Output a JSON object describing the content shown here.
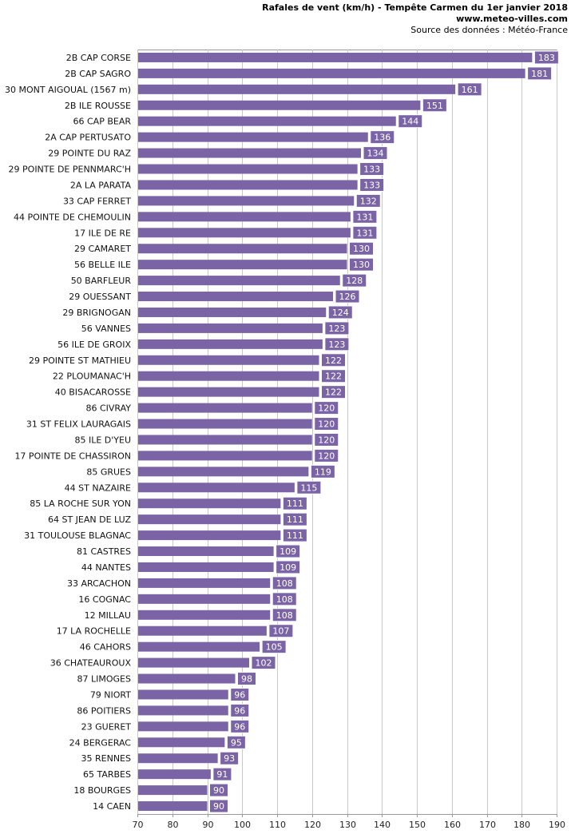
{
  "header": {
    "title": "Rafales de vent (km/h) - Tempête Carmen du 1er janvier 2018",
    "site": "www.meteo-villes.com",
    "source": "Source des données : Météo-France"
  },
  "colors": {
    "bar": "#7b64a6",
    "label_bg": "#7b64a6",
    "label_text": "#ffffff",
    "grid": "#c8c8c8"
  },
  "chart_data": {
    "type": "bar",
    "orientation": "horizontal",
    "title": "Rafales de vent (km/h) - Tempête Carmen du 1er janvier 2018",
    "xlabel": "",
    "ylabel": "",
    "xlim": [
      70,
      190
    ],
    "ticks": [
      70,
      80,
      90,
      100,
      110,
      120,
      130,
      140,
      150,
      160,
      170,
      180,
      190
    ],
    "grid": true,
    "categories": [
      "2B CAP CORSE",
      "2B CAP SAGRO",
      "30 MONT AIGOUAL (1567 m)",
      "2B ILE ROUSSE",
      "66 CAP BEAR",
      "2A CAP PERTUSATO",
      "29 POINTE DU RAZ",
      "29 POINTE DE PENNMARC'H",
      "2A LA PARATA",
      "33 CAP FERRET",
      "44 POINTE DE CHEMOULIN",
      "17 ILE DE RE",
      "29 CAMARET",
      "56 BELLE ILE",
      "50 BARFLEUR",
      "29 OUESSANT",
      "29 BRIGNOGAN",
      "56 VANNES",
      "56 ILE DE GROIX",
      "29 POINTE ST MATHIEU",
      "22 PLOUMANAC'H",
      "40 BISACAROSSE",
      "86 CIVRAY",
      "31 ST FELIX LAURAGAIS",
      "85 ILE D'YEU",
      "17 POINTE DE CHASSIRON",
      "85 GRUES",
      "44 ST NAZAIRE",
      "85 LA ROCHE SUR YON",
      "64 ST JEAN DE LUZ",
      "31 TOULOUSE BLAGNAC",
      "81 CASTRES",
      "44 NANTES",
      "33 ARCACHON",
      "16 COGNAC",
      "12 MILLAU",
      "17 LA ROCHELLE",
      "46 CAHORS",
      "36 CHATEAUROUX",
      "87 LIMOGES",
      "79 NIORT",
      "86 POITIERS",
      "23 GUERET",
      "24 BERGERAC",
      "35 RENNES",
      "65 TARBES",
      "18 BOURGES",
      "14 CAEN"
    ],
    "values": [
      183,
      181,
      161,
      151,
      144,
      136,
      134,
      133,
      133,
      132,
      131,
      131,
      130,
      130,
      128,
      126,
      124,
      123,
      123,
      122,
      122,
      122,
      120,
      120,
      120,
      120,
      119,
      115,
      111,
      111,
      111,
      109,
      109,
      108,
      108,
      108,
      107,
      105,
      102,
      98,
      96,
      96,
      96,
      95,
      93,
      91,
      90,
      90
    ]
  }
}
